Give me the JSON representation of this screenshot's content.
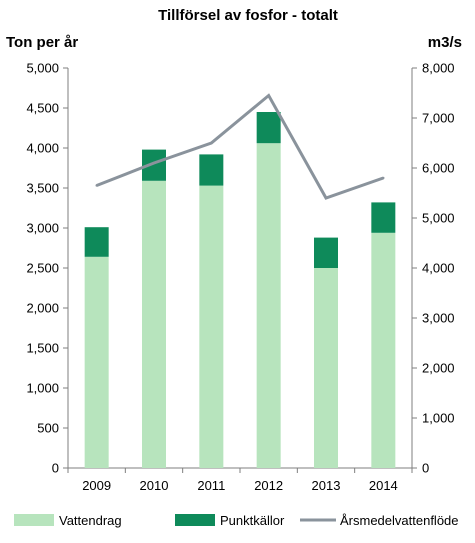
{
  "chart_data": {
    "type": "bar",
    "title": "Tillförsel av fosfor - totalt",
    "ylabel_left": "Ton per år",
    "ylabel_right": "m3/s",
    "categories": [
      "2009",
      "2010",
      "2011",
      "2012",
      "2013",
      "2014"
    ],
    "stacked": true,
    "series": [
      {
        "name": "Vattendrag",
        "type": "bar",
        "axis": "left",
        "color": "#b7e4bd",
        "values": [
          2640,
          3590,
          3530,
          4060,
          2500,
          2940
        ]
      },
      {
        "name": "Punktkällor",
        "type": "bar",
        "axis": "left",
        "color": "#0e8a5a",
        "values": [
          370,
          390,
          390,
          390,
          380,
          380
        ]
      },
      {
        "name": "Årsmedelvattenflöde",
        "type": "line",
        "axis": "right",
        "color": "#8a939c",
        "values": [
          5650,
          6100,
          6500,
          7450,
          5400,
          5800
        ]
      }
    ],
    "ylim_left": [
      0,
      5000
    ],
    "ylim_right": [
      0,
      8000
    ],
    "yticks_left": [
      "0",
      "500",
      "1,000",
      "1,500",
      "2,000",
      "2,500",
      "3,000",
      "3,500",
      "4,000",
      "4,500",
      "5,000"
    ],
    "yticks_right": [
      "0",
      "1,000",
      "2,000",
      "3,000",
      "4,000",
      "5,000",
      "6,000",
      "7,000",
      "8,000"
    ],
    "grid": false,
    "legend_position": "bottom"
  }
}
